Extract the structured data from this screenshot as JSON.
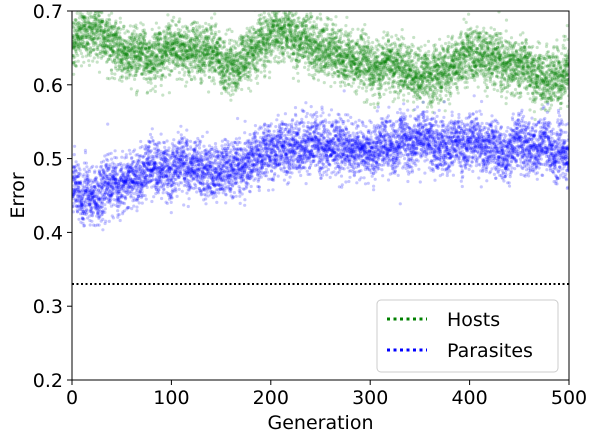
{
  "chart_data": {
    "type": "scatter",
    "xlabel": "Generation",
    "ylabel": "Error",
    "xlim": [
      0,
      500
    ],
    "ylim": [
      0.2,
      0.7
    ],
    "xticks": [
      0,
      100,
      200,
      300,
      400,
      500
    ],
    "xtick_labels": [
      "0",
      "100",
      "200",
      "300",
      "400",
      "500"
    ],
    "yticks": [
      0.2,
      0.3,
      0.4,
      0.5,
      0.6,
      0.7
    ],
    "ytick_labels": [
      "0.2",
      "0.3",
      "0.4",
      "0.5",
      "0.6",
      "0.7"
    ],
    "grid": false,
    "legend_position": "lower-right",
    "reference_line": {
      "y": 0.33,
      "style": "dotted",
      "color": "#000000"
    },
    "series": [
      {
        "name": "Hosts",
        "color": "#008000",
        "trend": {
          "x": [
            0,
            25,
            50,
            75,
            100,
            125,
            150,
            175,
            200,
            225,
            250,
            275,
            300,
            325,
            350,
            375,
            400,
            425,
            450,
            475,
            500
          ],
          "y": [
            0.66,
            0.67,
            0.645,
            0.635,
            0.65,
            0.655,
            0.63,
            0.64,
            0.675,
            0.67,
            0.655,
            0.635,
            0.625,
            0.62,
            0.61,
            0.615,
            0.64,
            0.63,
            0.62,
            0.61,
            0.62
          ]
        },
        "spread": 0.03
      },
      {
        "name": "Parasites",
        "color": "#0000ff",
        "trend": {
          "x": [
            0,
            25,
            50,
            75,
            100,
            125,
            150,
            175,
            200,
            225,
            250,
            275,
            300,
            325,
            350,
            375,
            400,
            425,
            450,
            475,
            500
          ],
          "y": [
            0.46,
            0.45,
            0.475,
            0.49,
            0.495,
            0.48,
            0.485,
            0.495,
            0.51,
            0.52,
            0.515,
            0.51,
            0.515,
            0.525,
            0.525,
            0.52,
            0.525,
            0.515,
            0.52,
            0.51,
            0.505
          ]
        },
        "spread": 0.03
      }
    ]
  }
}
